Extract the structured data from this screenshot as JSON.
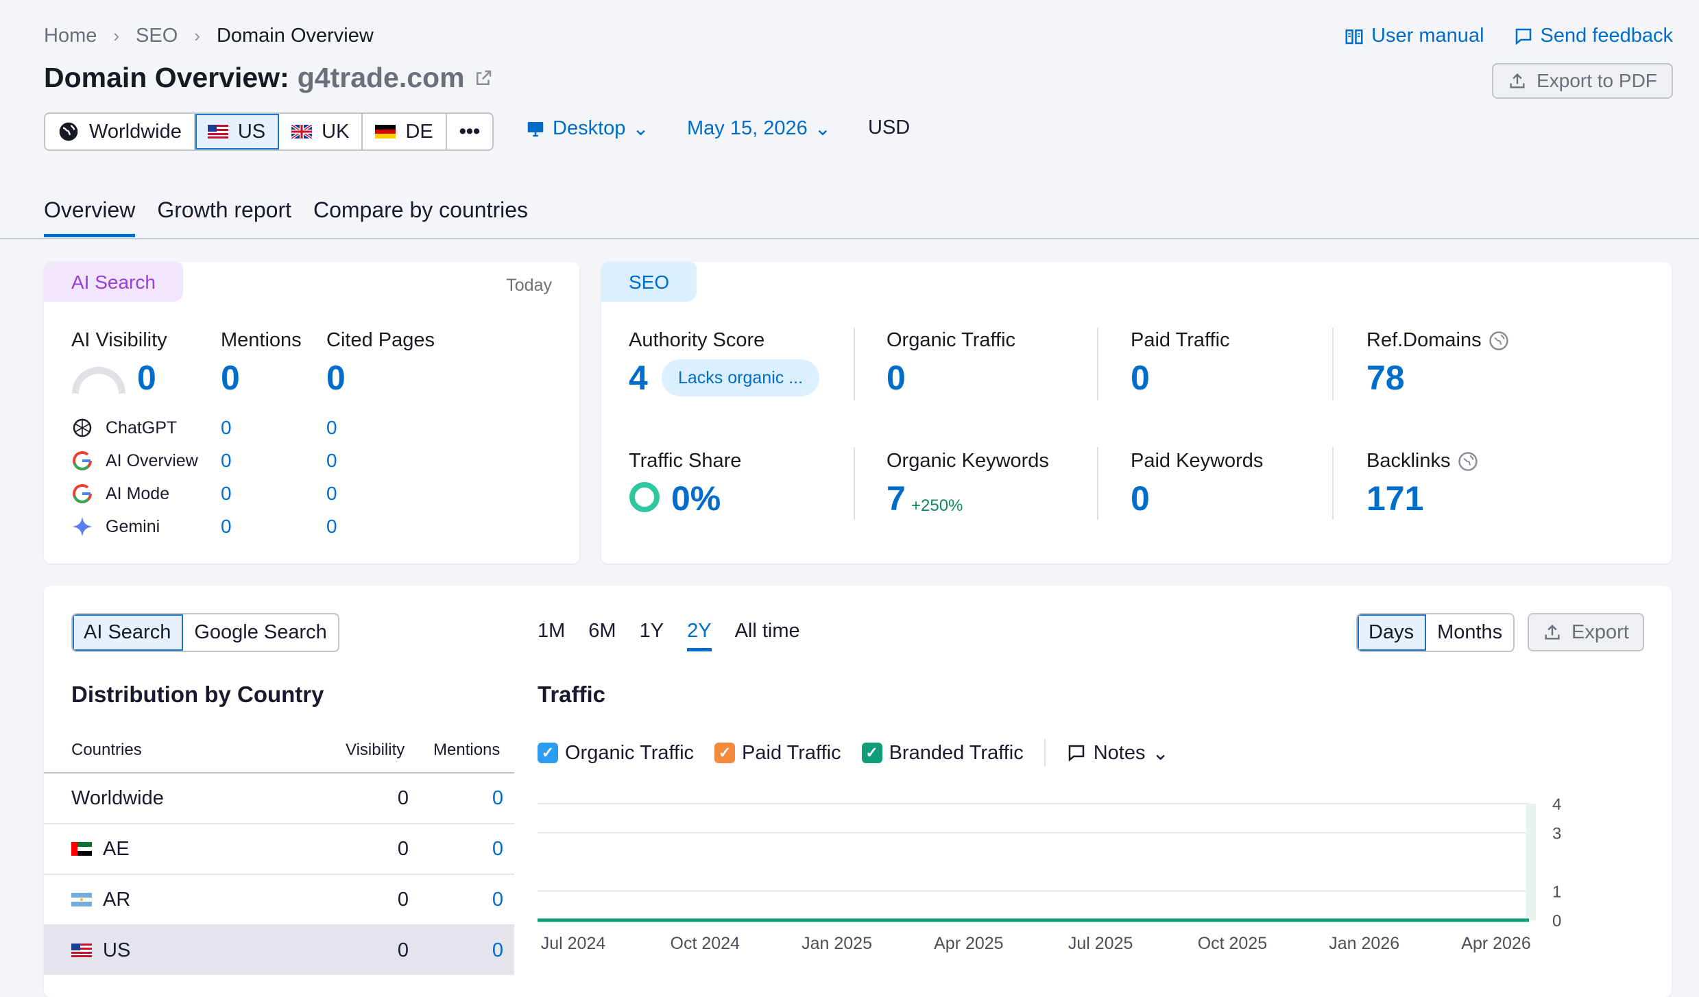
{
  "breadcrumb": [
    "Home",
    "SEO",
    "Domain Overview"
  ],
  "page_title": {
    "prefix": "Domain Overview:",
    "domain": "g4trade.com"
  },
  "top_links": {
    "manual": "User manual",
    "feedback": "Send feedback"
  },
  "export_pdf": "Export to PDF",
  "databases": [
    {
      "label": "Worldwide",
      "icon": "globe-icon"
    },
    {
      "label": "US",
      "icon": "us-flag-icon",
      "selected": true
    },
    {
      "label": "UK",
      "icon": "uk-flag-icon"
    },
    {
      "label": "DE",
      "icon": "de-flag-icon"
    },
    {
      "label": "•••",
      "icon": "more-icon"
    }
  ],
  "device": "Desktop",
  "date": "May 15, 2026",
  "currency": "USD",
  "tabs": [
    "Overview",
    "Growth report",
    "Compare by countries"
  ],
  "ai_card": {
    "badge": "AI Search",
    "period": "Today",
    "headers": {
      "visibility": "AI Visibility",
      "mentions": "Mentions",
      "cited": "Cited Pages"
    },
    "totals": {
      "visibility": "0",
      "mentions": "0",
      "cited": "0"
    },
    "sources": [
      {
        "name": "ChatGPT",
        "icon": "chatgpt-icon",
        "mentions": "0",
        "cited": "0"
      },
      {
        "name": "AI Overview",
        "icon": "google-icon",
        "mentions": "0",
        "cited": "0"
      },
      {
        "name": "AI Mode",
        "icon": "google-icon",
        "mentions": "0",
        "cited": "0"
      },
      {
        "name": "Gemini",
        "icon": "gemini-icon",
        "mentions": "0",
        "cited": "0"
      }
    ]
  },
  "seo_card": {
    "badge": "SEO",
    "authority": {
      "label": "Authority Score",
      "value": "4",
      "tag": "Lacks organic ..."
    },
    "organic_traffic": {
      "label": "Organic Traffic",
      "value": "0"
    },
    "paid_traffic": {
      "label": "Paid Traffic",
      "value": "0"
    },
    "ref_domains": {
      "label": "Ref.Domains",
      "value": "78"
    },
    "traffic_share": {
      "label": "Traffic Share",
      "value": "0%"
    },
    "organic_keywords": {
      "label": "Organic Keywords",
      "value": "7",
      "delta": "+250%"
    },
    "paid_keywords": {
      "label": "Paid Keywords",
      "value": "0"
    },
    "backlinks": {
      "label": "Backlinks",
      "value": "171"
    }
  },
  "bottom": {
    "search_toggle": [
      "AI Search",
      "Google Search"
    ],
    "periods": [
      "1M",
      "6M",
      "1Y",
      "2Y",
      "All time"
    ],
    "active_period": "2Y",
    "granularity": [
      "Days",
      "Months"
    ],
    "export": "Export",
    "distribution": {
      "title": "Distribution by Country",
      "headers": [
        "Countries",
        "Visibility",
        "Mentions"
      ],
      "rows": [
        {
          "country": "Worldwide",
          "visibility": "0",
          "mentions": "0"
        },
        {
          "country": "AE",
          "visibility": "0",
          "mentions": "0"
        },
        {
          "country": "AR",
          "visibility": "0",
          "mentions": "0"
        },
        {
          "country": "US",
          "visibility": "0",
          "mentions": "0"
        }
      ]
    },
    "traffic": {
      "title": "Traffic",
      "legend": [
        {
          "label": "Organic Traffic",
          "color": "#2b9cf0"
        },
        {
          "label": "Paid Traffic",
          "color": "#f58a3c"
        },
        {
          "label": "Branded Traffic",
          "color": "#0f9e78"
        }
      ],
      "notes": "Notes"
    }
  },
  "chart_data": {
    "type": "line",
    "title": "Traffic",
    "x_ticks": [
      "Jul 2024",
      "Oct 2024",
      "Jan 2025",
      "Apr 2025",
      "Jul 2025",
      "Oct 2025",
      "Jan 2026",
      "Apr 2026"
    ],
    "y_ticks": [
      "4",
      "3",
      "1",
      "0"
    ],
    "ylim": [
      0,
      4
    ],
    "series": [
      {
        "name": "Organic Traffic",
        "values": [
          0,
          0,
          0,
          0,
          0,
          0,
          0,
          0
        ]
      },
      {
        "name": "Paid Traffic",
        "values": [
          0,
          0,
          0,
          0,
          0,
          0,
          0,
          0
        ]
      },
      {
        "name": "Branded Traffic",
        "values": [
          0,
          0,
          0,
          0,
          0,
          0,
          0,
          0
        ]
      }
    ]
  }
}
